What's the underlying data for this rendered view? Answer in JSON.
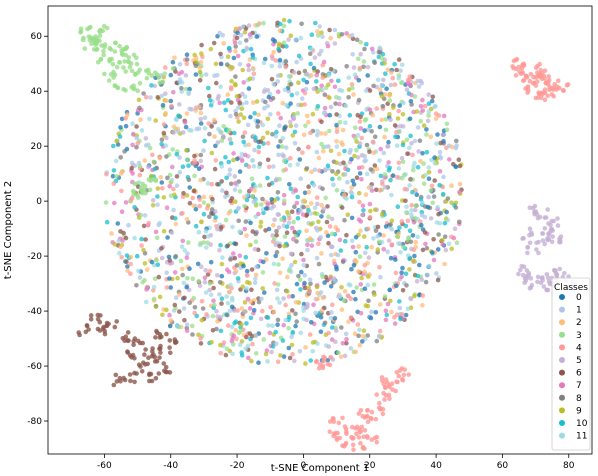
{
  "chart_data": {
    "type": "scatter",
    "title": "",
    "xlabel": "t-SNE Component 1",
    "ylabel": "t-SNE Component 2",
    "xlim": [
      -77,
      87
    ],
    "ylim": [
      -92,
      71
    ],
    "xticks": [
      -60,
      -40,
      -20,
      0,
      20,
      40,
      60,
      80
    ],
    "yticks": [
      -80,
      -60,
      -40,
      -20,
      0,
      20,
      40,
      60
    ],
    "grid": false,
    "legend": {
      "title": "Classes",
      "placement": "lower-right",
      "entries": [
        "0",
        "1",
        "2",
        "3",
        "4",
        "5",
        "6",
        "7",
        "8",
        "9",
        "10",
        "11"
      ]
    },
    "series": [
      {
        "name": "0",
        "color": "#1f77b4"
      },
      {
        "name": "1",
        "color": "#aec7e8"
      },
      {
        "name": "2",
        "color": "#ffbb78"
      },
      {
        "name": "3",
        "color": "#98df8a"
      },
      {
        "name": "4",
        "color": "#ff9896"
      },
      {
        "name": "5",
        "color": "#c5b0d5"
      },
      {
        "name": "6",
        "color": "#8c564b"
      },
      {
        "name": "7",
        "color": "#e377c2"
      },
      {
        "name": "8",
        "color": "#7f7f7f"
      },
      {
        "name": "9",
        "color": "#bcbd22"
      },
      {
        "name": "10",
        "color": "#17becf"
      },
      {
        "name": "11",
        "color": "#9edae5"
      }
    ],
    "clusters": [
      {
        "class": "3",
        "points": [
          [
            -66,
            62
          ],
          [
            -62,
            60
          ],
          [
            -58,
            57
          ],
          [
            -55,
            55
          ],
          [
            -52,
            52
          ],
          [
            -60,
            52
          ],
          [
            -64,
            57
          ],
          [
            -56,
            50
          ],
          [
            -52,
            48
          ],
          [
            -48,
            46
          ],
          [
            -44,
            45
          ],
          [
            -58,
            45
          ],
          [
            -55,
            42
          ],
          [
            -50,
            42
          ],
          [
            -62,
            55
          ],
          [
            -65,
            60
          ],
          [
            -60,
            63
          ],
          [
            -53,
            54
          ]
        ]
      },
      {
        "class": "4",
        "points": [
          [
            64,
            50
          ],
          [
            66,
            47
          ],
          [
            68,
            45
          ],
          [
            70,
            44
          ],
          [
            72,
            46
          ],
          [
            74,
            42
          ],
          [
            76,
            40
          ],
          [
            72,
            40
          ],
          [
            68,
            41
          ],
          [
            65,
            49
          ],
          [
            70,
            48
          ],
          [
            74,
            44
          ],
          [
            78,
            42
          ],
          [
            71,
            38
          ]
        ]
      },
      {
        "class": "5",
        "points": [
          [
            70,
            -3
          ],
          [
            72,
            -5
          ],
          [
            75,
            -7
          ],
          [
            74,
            -12
          ],
          [
            72,
            -15
          ],
          [
            69,
            -17
          ],
          [
            67,
            -12
          ],
          [
            73,
            -10
          ],
          [
            76,
            -14
          ],
          [
            66,
            -25
          ],
          [
            69,
            -27
          ],
          [
            72,
            -28
          ],
          [
            75,
            -29
          ],
          [
            78,
            -27
          ],
          [
            80,
            -30
          ],
          [
            68,
            -30
          ],
          [
            73,
            -31
          ],
          [
            77,
            -25
          ]
        ]
      },
      {
        "class": "6",
        "points": [
          [
            -66,
            -47
          ],
          [
            -62,
            -43
          ],
          [
            -58,
            -45
          ],
          [
            -54,
            -49
          ],
          [
            -50,
            -52
          ],
          [
            -47,
            -55
          ],
          [
            -44,
            -58
          ],
          [
            -42,
            -54
          ],
          [
            -40,
            -50
          ],
          [
            -44,
            -49
          ],
          [
            -48,
            -60
          ],
          [
            -52,
            -64
          ],
          [
            -56,
            -65
          ],
          [
            -46,
            -64
          ],
          [
            -42,
            -62
          ],
          [
            -60,
            -47
          ],
          [
            -52,
            -56
          ]
        ]
      },
      {
        "class": "4",
        "points": [
          [
            9,
            -85
          ],
          [
            12,
            -88
          ],
          [
            15,
            -86
          ],
          [
            18,
            -84
          ],
          [
            20,
            -80
          ],
          [
            22,
            -76
          ],
          [
            24,
            -72
          ],
          [
            26,
            -68
          ],
          [
            28,
            -65
          ],
          [
            30,
            -62
          ],
          [
            14,
            -83
          ],
          [
            10,
            -80
          ],
          [
            17,
            -90
          ],
          [
            21,
            -87
          ],
          [
            25,
            -66
          ],
          [
            18,
            -78
          ],
          [
            5,
            -60
          ],
          [
            7,
            -58
          ]
        ]
      },
      {
        "class": "3",
        "points": [
          [
            -50,
            5
          ],
          [
            -48,
            3
          ],
          [
            -46,
            6
          ]
        ]
      }
    ],
    "central_blob": {
      "x_range": [
        -57,
        52
      ],
      "y_range": [
        -60,
        66
      ],
      "classes": [
        "0",
        "1",
        "2",
        "3",
        "4",
        "5",
        "6",
        "7",
        "8",
        "9",
        "10",
        "11"
      ]
    }
  }
}
